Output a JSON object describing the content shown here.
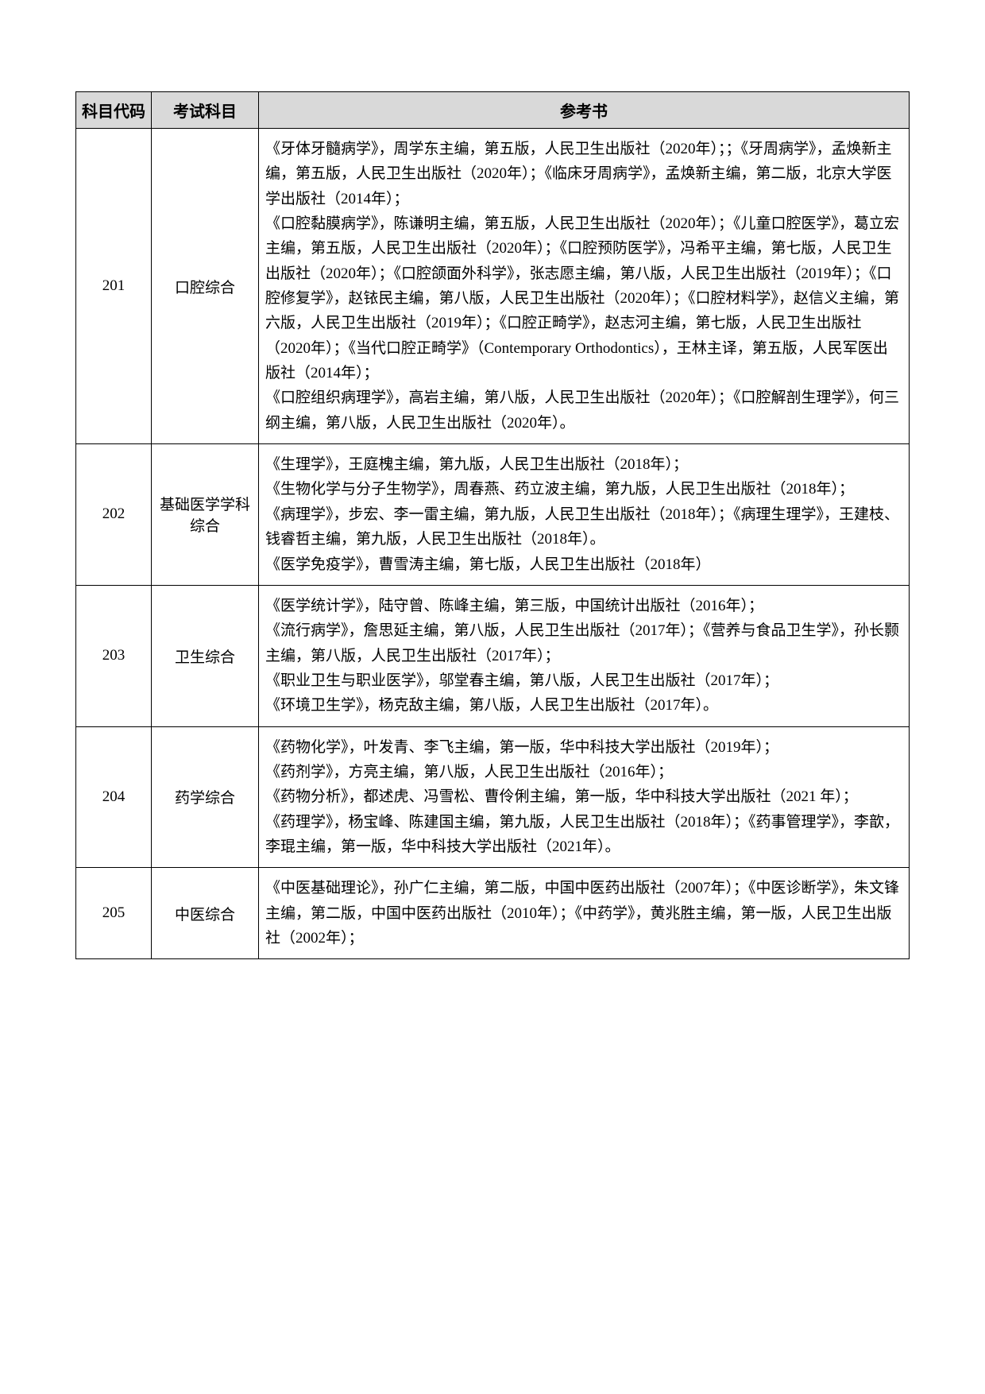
{
  "headers": {
    "code": "科目代码",
    "subject": "考试科目",
    "refs": "参考书"
  },
  "rows": [
    {
      "code": "201",
      "subject": "口腔综合",
      "refs": "《牙体牙髓病学》，周学东主编，第五版，人民卫生出版社（2020年）；；《牙周病学》，孟焕新主编，第五版，人民卫生出版社（2020年）；《临床牙周病学》，孟焕新主编，第二版，北京大学医学出版社（2014年）；\n《口腔黏膜病学》，陈谦明主编，第五版，人民卫生出版社（2020年）；《儿童口腔医学》，葛立宏主编，第五版，人民卫生出版社（2020年）；《口腔预防医学》，冯希平主编，第七版，人民卫生出版社（2020年）；《口腔颌面外科学》，张志愿主编，第八版，人民卫生出版社（2019年）；《口腔修复学》，赵铱民主编，第八版，人民卫生出版社（2020年）；《口腔材料学》，赵信义主编，第六版，人民卫生出版社（2019年）；《口腔正畸学》，赵志河主编，第七版，人民卫生出版社（2020年）；《当代口腔正畸学》（Contemporary Orthodontics），王林主译，第五版，人民军医出版社（2014年）；\n《口腔组织病理学》，高岩主编，第八版，人民卫生出版社（2020年）；《口腔解剖生理学》，何三纲主编，第八版，人民卫生出版社（2020年）。"
    },
    {
      "code": "202",
      "subject": "基础医学学科综合",
      "refs": "《生理学》，王庭槐主编，第九版，人民卫生出版社（2018年）；\n《生物化学与分子生物学》，周春燕、药立波主编，第九版，人民卫生出版社（2018年）；\n《病理学》，步宏、李一雷主编，第九版，人民卫生出版社（2018年）；《病理生理学》，王建枝、钱睿哲主编，第九版，人民卫生出版社（2018年）。\n《医学免疫学》，曹雪涛主编，第七版，人民卫生出版社（2018年）"
    },
    {
      "code": "203",
      "subject": "卫生综合",
      "refs": "《医学统计学》，陆守曾、陈峰主编，第三版，中国统计出版社（2016年）；\n《流行病学》，詹思延主编，第八版，人民卫生出版社（2017年）；《营养与食品卫生学》，孙长颢主编，第八版，人民卫生出版社（2017年）；\n《职业卫生与职业医学》，邬堂春主编，第八版，人民卫生出版社（2017年）；\n《环境卫生学》，杨克敌主编，第八版，人民卫生出版社（2017年）。"
    },
    {
      "code": "204",
      "subject": "药学综合",
      "refs": "《药物化学》，叶发青、李飞主编，第一版，华中科技大学出版社（2019年）；\n《药剂学》，方亮主编，第八版，人民卫生出版社（2016年）；\n《药物分析》，都述虎、冯雪松、曹伶俐主编，第一版，华中科技大学出版社（2021 年）；\n《药理学》，杨宝峰、陈建国主编，第九版，人民卫生出版社（2018年）；《药事管理学》，李歆，李琨主编，第一版，华中科技大学出版社（2021年）。"
    },
    {
      "code": "205",
      "subject": "中医综合",
      "refs": "《中医基础理论》，孙广仁主编，第二版，中国中医药出版社（2007年）；《中医诊断学》，朱文锋主编，第二版，中国中医药出版社（2010年）；《中药学》，黄兆胜主编，第一版，人民卫生出版社（2002年）；"
    }
  ]
}
